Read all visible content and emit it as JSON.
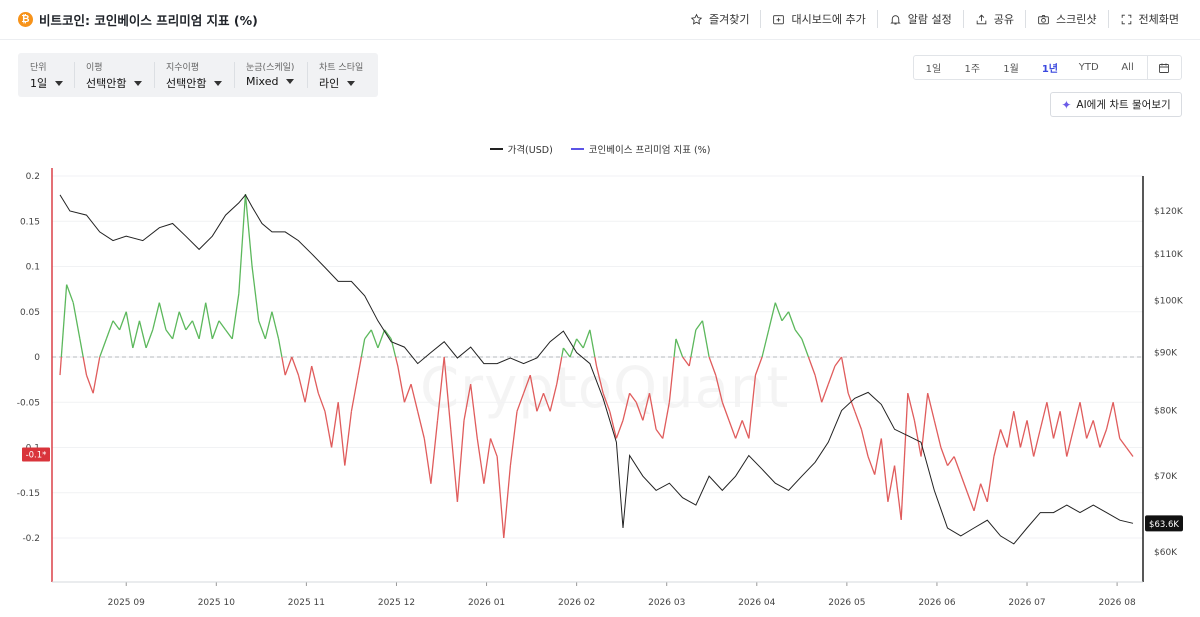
{
  "header": {
    "title": "비트코인: 코인베이스 프리미엄 지표 (%)",
    "coin_symbol": "₿",
    "actions": [
      {
        "label": "즐겨찾기",
        "icon": "star-icon"
      },
      {
        "label": "대시보드에 추가",
        "icon": "dashboard-add-icon"
      },
      {
        "label": "알람 설정",
        "icon": "bell-icon"
      },
      {
        "label": "공유",
        "icon": "share-icon"
      },
      {
        "label": "스크린샷",
        "icon": "camera-icon"
      },
      {
        "label": "전체화면",
        "icon": "fullscreen-icon"
      }
    ]
  },
  "toolbar": {
    "unit": {
      "label": "단위",
      "value": "1일"
    },
    "moving_avg": {
      "label": "이평",
      "value": "선택안함"
    },
    "exp_avg": {
      "label": "지수이평",
      "value": "선택안함"
    },
    "scale": {
      "label": "눈금(스케일)",
      "value": "Mixed"
    },
    "style": {
      "label": "차트 스타일",
      "value": "라인"
    }
  },
  "periods": {
    "options": [
      "1일",
      "1주",
      "1월",
      "1년",
      "YTD",
      "All"
    ],
    "selected": "1년",
    "calendar_icon": "calendar-icon"
  },
  "ai_button": {
    "label": "AI에게 차트 물어보기",
    "icon": "sparkle-icon"
  },
  "watermark": "CryptoQuant",
  "colors": {
    "price_line": "#222222",
    "premium_positive": "#5cb85c",
    "premium_negative": "#e05c5c",
    "legend_premium": "#5b54e6",
    "left_axis_marker": "#d9343b",
    "price_badge": "#111111"
  },
  "chart_data": {
    "type": "line",
    "legend": [
      "가격(USD)",
      "코인베이스 프리미엄 지표 (%)"
    ],
    "x_tick_labels": [
      "2025 09",
      "2025 10",
      "2025 11",
      "2025 12",
      "2026 01",
      "2026 02",
      "2026 03",
      "2026 04",
      "2026 05",
      "2026 06",
      "2026 07",
      "2026 08"
    ],
    "left_axis": {
      "ticks": [
        "0.2",
        "0.15",
        "0.1",
        "0.05",
        "0",
        "-0.05",
        "-0.1",
        "-0.15",
        "-0.2"
      ],
      "range": [
        -0.25,
        0.2
      ],
      "current_marker": "-0.1*"
    },
    "right_axis": {
      "ticks": [
        "$120K",
        "$110K",
        "$100K",
        "$90K",
        "$80K",
        "$70K",
        "$60K"
      ],
      "scale": "log",
      "current_badge": "$63.6K"
    },
    "zero_line": "dashed",
    "series": [
      {
        "name": "가격(USD)",
        "axis": "right",
        "points": [
          [
            0,
            124
          ],
          [
            3,
            120
          ],
          [
            8,
            119
          ],
          [
            12,
            115
          ],
          [
            16,
            113
          ],
          [
            20,
            114
          ],
          [
            25,
            113
          ],
          [
            30,
            116
          ],
          [
            34,
            117
          ],
          [
            38,
            114
          ],
          [
            42,
            111
          ],
          [
            46,
            114
          ],
          [
            50,
            119
          ],
          [
            54,
            122
          ],
          [
            56,
            124
          ],
          [
            58,
            121
          ],
          [
            61,
            117
          ],
          [
            64,
            115
          ],
          [
            68,
            115
          ],
          [
            72,
            113
          ],
          [
            76,
            110
          ],
          [
            80,
            107
          ],
          [
            84,
            104
          ],
          [
            88,
            104
          ],
          [
            92,
            101
          ],
          [
            96,
            96
          ],
          [
            100,
            92
          ],
          [
            104,
            91
          ],
          [
            108,
            88
          ],
          [
            112,
            90
          ],
          [
            116,
            92
          ],
          [
            120,
            89
          ],
          [
            124,
            91
          ],
          [
            128,
            88
          ],
          [
            132,
            88
          ],
          [
            136,
            89
          ],
          [
            140,
            88
          ],
          [
            144,
            89
          ],
          [
            148,
            92
          ],
          [
            152,
            94
          ],
          [
            156,
            90
          ],
          [
            160,
            88
          ],
          [
            164,
            82
          ],
          [
            168,
            75
          ],
          [
            170,
            63
          ],
          [
            172,
            73
          ],
          [
            176,
            70
          ],
          [
            180,
            68
          ],
          [
            184,
            69
          ],
          [
            188,
            67
          ],
          [
            192,
            66
          ],
          [
            196,
            70
          ],
          [
            200,
            68
          ],
          [
            204,
            70
          ],
          [
            208,
            73
          ],
          [
            212,
            71
          ],
          [
            216,
            69
          ],
          [
            220,
            68
          ],
          [
            224,
            70
          ],
          [
            228,
            72
          ],
          [
            232,
            75
          ],
          [
            236,
            80
          ],
          [
            240,
            82
          ],
          [
            244,
            83
          ],
          [
            248,
            81
          ],
          [
            252,
            77
          ],
          [
            256,
            76
          ],
          [
            260,
            75
          ],
          [
            264,
            68
          ],
          [
            268,
            63
          ],
          [
            272,
            62
          ],
          [
            276,
            63
          ],
          [
            280,
            64
          ],
          [
            284,
            62
          ],
          [
            288,
            61
          ],
          [
            292,
            63
          ],
          [
            296,
            65
          ],
          [
            300,
            65
          ],
          [
            304,
            66
          ],
          [
            308,
            65
          ],
          [
            312,
            66
          ],
          [
            316,
            65
          ],
          [
            320,
            64
          ],
          [
            324,
            63.6
          ]
        ]
      },
      {
        "name": "코인베이스 프리미엄 지표 (%)",
        "axis": "left",
        "points": [
          [
            0,
            -0.02
          ],
          [
            2,
            0.08
          ],
          [
            4,
            0.06
          ],
          [
            6,
            0.02
          ],
          [
            8,
            -0.02
          ],
          [
            10,
            -0.04
          ],
          [
            12,
            0.0
          ],
          [
            14,
            0.02
          ],
          [
            16,
            0.04
          ],
          [
            18,
            0.03
          ],
          [
            20,
            0.05
          ],
          [
            22,
            0.01
          ],
          [
            24,
            0.04
          ],
          [
            26,
            0.01
          ],
          [
            28,
            0.03
          ],
          [
            30,
            0.06
          ],
          [
            32,
            0.03
          ],
          [
            34,
            0.02
          ],
          [
            36,
            0.05
          ],
          [
            38,
            0.03
          ],
          [
            40,
            0.04
          ],
          [
            42,
            0.02
          ],
          [
            44,
            0.06
          ],
          [
            46,
            0.02
          ],
          [
            48,
            0.04
          ],
          [
            50,
            0.03
          ],
          [
            52,
            0.02
          ],
          [
            54,
            0.07
          ],
          [
            56,
            0.18
          ],
          [
            58,
            0.1
          ],
          [
            60,
            0.04
          ],
          [
            62,
            0.02
          ],
          [
            64,
            0.05
          ],
          [
            66,
            0.02
          ],
          [
            68,
            -0.02
          ],
          [
            70,
            0.0
          ],
          [
            72,
            -0.02
          ],
          [
            74,
            -0.05
          ],
          [
            76,
            -0.01
          ],
          [
            78,
            -0.04
          ],
          [
            80,
            -0.06
          ],
          [
            82,
            -0.1
          ],
          [
            84,
            -0.05
          ],
          [
            86,
            -0.12
          ],
          [
            88,
            -0.06
          ],
          [
            90,
            -0.02
          ],
          [
            92,
            0.02
          ],
          [
            94,
            0.03
          ],
          [
            96,
            0.01
          ],
          [
            98,
            0.03
          ],
          [
            100,
            0.02
          ],
          [
            102,
            -0.01
          ],
          [
            104,
            -0.05
          ],
          [
            106,
            -0.03
          ],
          [
            108,
            -0.06
          ],
          [
            110,
            -0.09
          ],
          [
            112,
            -0.14
          ],
          [
            114,
            -0.07
          ],
          [
            116,
            0.0
          ],
          [
            118,
            -0.08
          ],
          [
            120,
            -0.16
          ],
          [
            122,
            -0.07
          ],
          [
            124,
            -0.03
          ],
          [
            126,
            -0.09
          ],
          [
            128,
            -0.14
          ],
          [
            130,
            -0.09
          ],
          [
            132,
            -0.11
          ],
          [
            134,
            -0.2
          ],
          [
            136,
            -0.12
          ],
          [
            138,
            -0.06
          ],
          [
            140,
            -0.04
          ],
          [
            142,
            -0.02
          ],
          [
            144,
            -0.06
          ],
          [
            146,
            -0.04
          ],
          [
            148,
            -0.06
          ],
          [
            150,
            -0.03
          ],
          [
            152,
            0.01
          ],
          [
            154,
            0.0
          ],
          [
            156,
            0.02
          ],
          [
            158,
            0.01
          ],
          [
            160,
            0.03
          ],
          [
            162,
            -0.01
          ],
          [
            164,
            -0.04
          ],
          [
            166,
            -0.06
          ],
          [
            168,
            -0.09
          ],
          [
            170,
            -0.07
          ],
          [
            172,
            -0.04
          ],
          [
            174,
            -0.05
          ],
          [
            176,
            -0.07
          ],
          [
            178,
            -0.04
          ],
          [
            180,
            -0.08
          ],
          [
            182,
            -0.09
          ],
          [
            184,
            -0.05
          ],
          [
            186,
            0.02
          ],
          [
            188,
            0.0
          ],
          [
            190,
            -0.01
          ],
          [
            192,
            0.03
          ],
          [
            194,
            0.04
          ],
          [
            196,
            0.0
          ],
          [
            198,
            -0.02
          ],
          [
            200,
            -0.05
          ],
          [
            202,
            -0.07
          ],
          [
            204,
            -0.09
          ],
          [
            206,
            -0.07
          ],
          [
            208,
            -0.09
          ],
          [
            210,
            -0.02
          ],
          [
            212,
            0.0
          ],
          [
            214,
            0.03
          ],
          [
            216,
            0.06
          ],
          [
            218,
            0.04
          ],
          [
            220,
            0.05
          ],
          [
            222,
            0.03
          ],
          [
            224,
            0.02
          ],
          [
            226,
            0.0
          ],
          [
            228,
            -0.02
          ],
          [
            230,
            -0.05
          ],
          [
            232,
            -0.03
          ],
          [
            234,
            -0.01
          ],
          [
            236,
            0.0
          ],
          [
            238,
            -0.04
          ],
          [
            240,
            -0.06
          ],
          [
            242,
            -0.08
          ],
          [
            244,
            -0.11
          ],
          [
            246,
            -0.13
          ],
          [
            248,
            -0.09
          ],
          [
            250,
            -0.16
          ],
          [
            252,
            -0.12
          ],
          [
            254,
            -0.18
          ],
          [
            256,
            -0.04
          ],
          [
            258,
            -0.07
          ],
          [
            260,
            -0.11
          ],
          [
            262,
            -0.04
          ],
          [
            264,
            -0.07
          ],
          [
            266,
            -0.1
          ],
          [
            268,
            -0.12
          ],
          [
            270,
            -0.11
          ],
          [
            272,
            -0.13
          ],
          [
            274,
            -0.15
          ],
          [
            276,
            -0.17
          ],
          [
            278,
            -0.14
          ],
          [
            280,
            -0.16
          ],
          [
            282,
            -0.11
          ],
          [
            284,
            -0.08
          ],
          [
            286,
            -0.1
          ],
          [
            288,
            -0.06
          ],
          [
            290,
            -0.1
          ],
          [
            292,
            -0.07
          ],
          [
            294,
            -0.11
          ],
          [
            296,
            -0.08
          ],
          [
            298,
            -0.05
          ],
          [
            300,
            -0.09
          ],
          [
            302,
            -0.06
          ],
          [
            304,
            -0.11
          ],
          [
            306,
            -0.08
          ],
          [
            308,
            -0.05
          ],
          [
            310,
            -0.09
          ],
          [
            312,
            -0.07
          ],
          [
            314,
            -0.1
          ],
          [
            316,
            -0.08
          ],
          [
            318,
            -0.05
          ],
          [
            320,
            -0.09
          ],
          [
            322,
            -0.1
          ],
          [
            324,
            -0.11
          ]
        ]
      }
    ]
  }
}
